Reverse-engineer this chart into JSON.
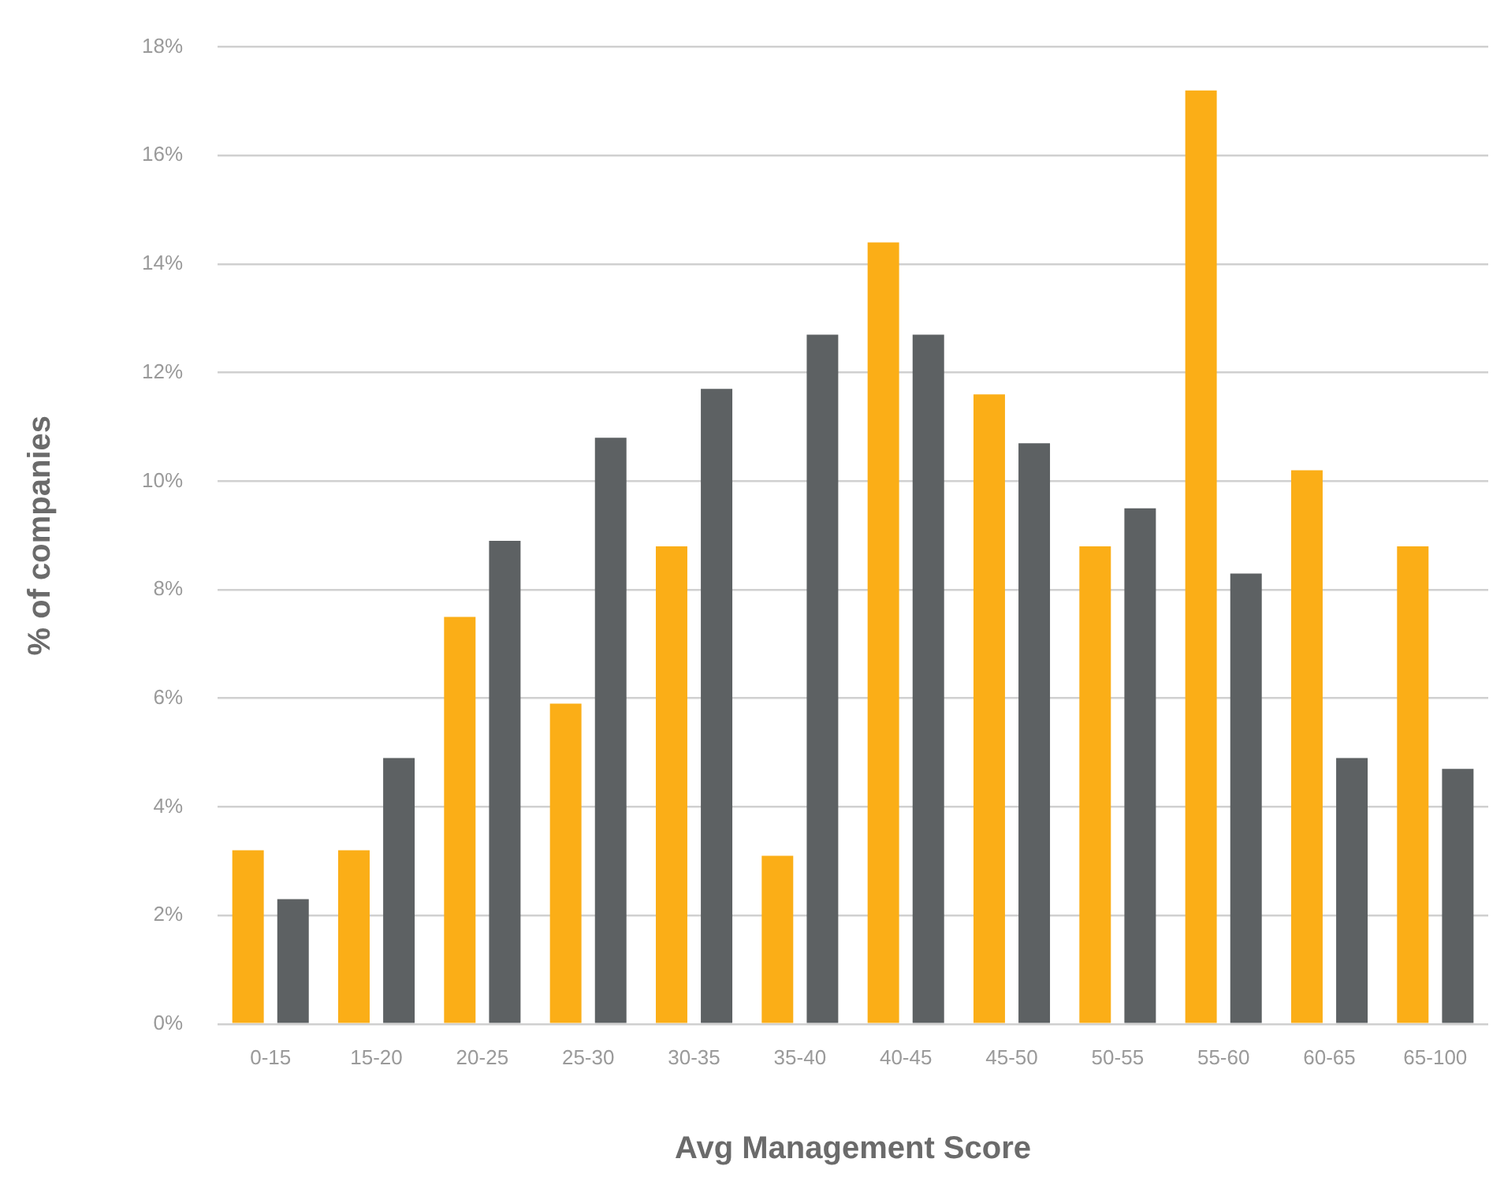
{
  "chart_data": {
    "type": "bar",
    "xlabel": "Avg Management Score",
    "ylabel": "% of companies",
    "categories": [
      "0-15",
      "15-20",
      "20-25",
      "25-30",
      "30-35",
      "35-40",
      "40-45",
      "45-50",
      "50-55",
      "55-60",
      "60-65",
      "65-100"
    ],
    "series": [
      {
        "color": "#fbae17",
        "values": [
          3.2,
          3.2,
          7.5,
          5.9,
          8.8,
          3.1,
          14.4,
          11.6,
          8.8,
          17.2,
          10.2,
          8.8
        ]
      },
      {
        "color": "#5d6163",
        "values": [
          2.3,
          4.9,
          8.9,
          10.8,
          11.7,
          12.7,
          12.7,
          10.7,
          9.5,
          8.3,
          4.9,
          4.7
        ]
      }
    ],
    "ylim": [
      0,
      18
    ],
    "yticks": [
      {
        "value": 0,
        "label": "0%"
      },
      {
        "value": 2,
        "label": "2%"
      },
      {
        "value": 4,
        "label": "4%"
      },
      {
        "value": 6,
        "label": "6%"
      },
      {
        "value": 8,
        "label": "8%"
      },
      {
        "value": 10,
        "label": "10%"
      },
      {
        "value": 12,
        "label": "12%"
      },
      {
        "value": 14,
        "label": "14%"
      },
      {
        "value": 16,
        "label": "16%"
      },
      {
        "value": 18,
        "label": "18%"
      }
    ],
    "grid": "y",
    "legend": false
  }
}
